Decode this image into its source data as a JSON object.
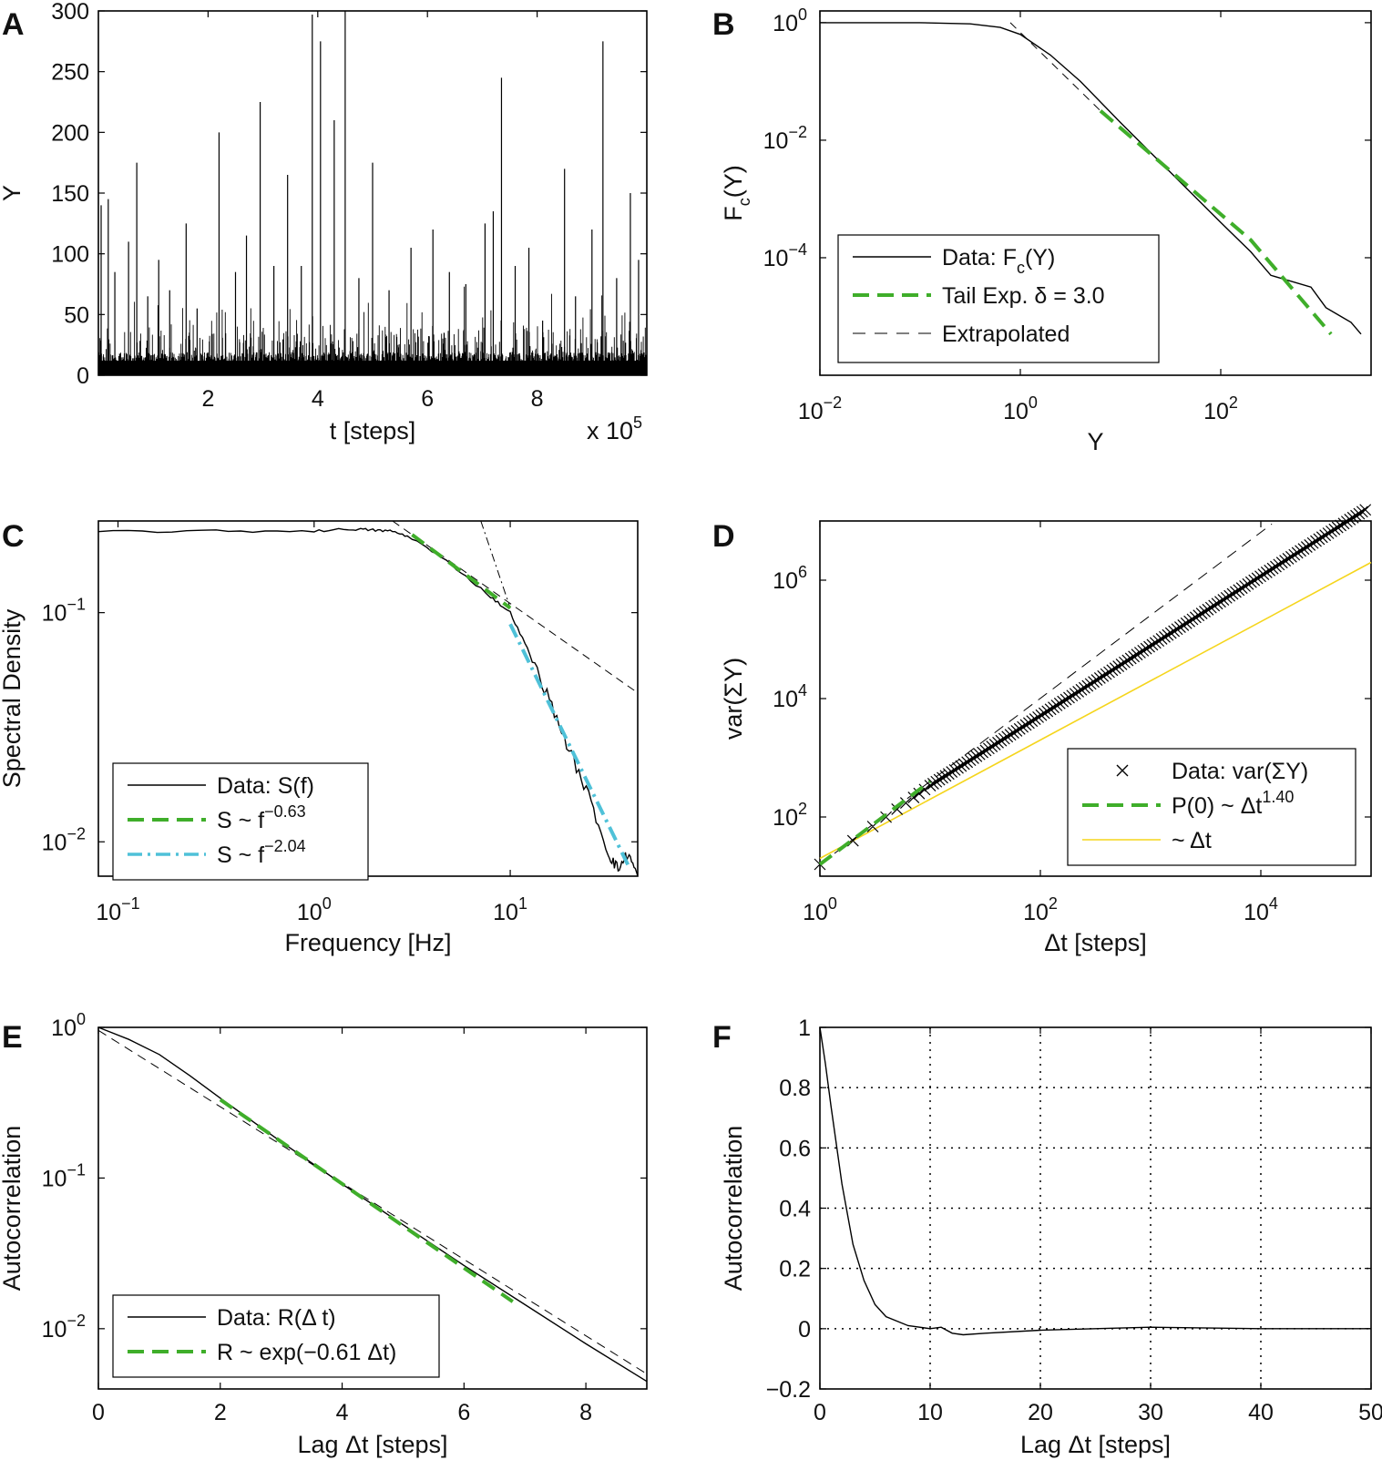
{
  "colors": {
    "data": "#000000",
    "green": "#3fae2a",
    "cyan": "#4fc1d8",
    "yellow": "#f5d51c",
    "grid": "#000000"
  },
  "chart_data": [
    {
      "panel": "A",
      "type": "line",
      "xlabel": "t [steps]",
      "x_multiplier": "x 10",
      "x_multiplier_exp": "5",
      "ylabel": "Y",
      "xlim": [
        0,
        10
      ],
      "ylim": [
        0,
        300
      ],
      "xticks": [
        {
          "v": 2,
          "label": "2"
        },
        {
          "v": 4,
          "label": "4"
        },
        {
          "v": 6,
          "label": "6"
        },
        {
          "v": 8,
          "label": "8"
        }
      ],
      "yticks": [
        {
          "v": 0,
          "label": "0"
        },
        {
          "v": 50,
          "label": "50"
        },
        {
          "v": 100,
          "label": "100"
        },
        {
          "v": 150,
          "label": "150"
        },
        {
          "v": 200,
          "label": "200"
        },
        {
          "v": 250,
          "label": "250"
        },
        {
          "v": 300,
          "label": "300"
        }
      ],
      "series": [
        {
          "name": "Y(t)",
          "spikes": [
            [
              0.05,
              140
            ],
            [
              0.18,
              145
            ],
            [
              0.3,
              85
            ],
            [
              0.55,
              110
            ],
            [
              0.7,
              175
            ],
            [
              0.9,
              65
            ],
            [
              1.1,
              95
            ],
            [
              1.3,
              70
            ],
            [
              1.6,
              125
            ],
            [
              1.8,
              55
            ],
            [
              2.2,
              200
            ],
            [
              2.5,
              85
            ],
            [
              2.7,
              115
            ],
            [
              2.95,
              225
            ],
            [
              3.2,
              90
            ],
            [
              3.45,
              165
            ],
            [
              3.7,
              90
            ],
            [
              3.9,
              297
            ],
            [
              4.05,
              275
            ],
            [
              4.3,
              210
            ],
            [
              4.5,
              300
            ],
            [
              4.75,
              80
            ],
            [
              5.0,
              175
            ],
            [
              5.3,
              70
            ],
            [
              5.7,
              105
            ],
            [
              6.1,
              120
            ],
            [
              6.4,
              85
            ],
            [
              6.7,
              75
            ],
            [
              7.05,
              125
            ],
            [
              7.2,
              135
            ],
            [
              7.35,
              245
            ],
            [
              7.6,
              90
            ],
            [
              7.85,
              105
            ],
            [
              8.1,
              45
            ],
            [
              8.5,
              170
            ],
            [
              8.7,
              65
            ],
            [
              9.0,
              120
            ],
            [
              9.2,
              275
            ],
            [
              9.45,
              80
            ],
            [
              9.7,
              150
            ],
            [
              9.85,
              95
            ]
          ]
        }
      ]
    },
    {
      "panel": "B",
      "type": "line",
      "scale": "loglog",
      "xlabel": "Y",
      "ylabel": "F",
      "ylabel_sub": "c",
      "ylabel_tail": "(Y)",
      "xlim_log10": [
        -2,
        3.5
      ],
      "ylim_log10": [
        -6,
        0.2
      ],
      "xticks": [
        {
          "v": -2,
          "base": "10",
          "exp": "−2"
        },
        {
          "v": 0,
          "base": "10",
          "exp": "0"
        },
        {
          "v": 2,
          "base": "10",
          "exp": "2"
        }
      ],
      "yticks": [
        {
          "v": 0,
          "base": "10",
          "exp": "0"
        },
        {
          "v": -2,
          "base": "10",
          "exp": "−2"
        },
        {
          "v": -4,
          "base": "10",
          "exp": "−4"
        }
      ],
      "series": [
        {
          "name": "Data",
          "points_log10": [
            [
              -2,
              0
            ],
            [
              -1,
              0
            ],
            [
              -0.5,
              -0.02
            ],
            [
              -0.2,
              -0.08
            ],
            [
              0,
              -0.2
            ],
            [
              0.3,
              -0.55
            ],
            [
              0.6,
              -1.0
            ],
            [
              1,
              -1.7
            ],
            [
              1.5,
              -2.55
            ],
            [
              2,
              -3.4
            ],
            [
              2.3,
              -3.9
            ],
            [
              2.4,
              -4.1
            ],
            [
              2.5,
              -4.3
            ],
            [
              2.9,
              -4.5
            ],
            [
              3.05,
              -4.85
            ],
            [
              3.2,
              -5.0
            ],
            [
              3.3,
              -5.1
            ],
            [
              3.4,
              -5.3
            ]
          ]
        },
        {
          "name": "Tail",
          "points_log10": [
            [
              0.8,
              -1.5
            ],
            [
              2.3,
              -3.7
            ],
            [
              3.1,
              -5.3
            ]
          ]
        },
        {
          "name": "Extrapolated",
          "points_log10": [
            [
              -0.1,
              0.0
            ],
            [
              0.8,
              -1.5
            ]
          ]
        }
      ],
      "legend": [
        {
          "text": "Data: F",
          "sub": "c",
          "tail": "(Y)",
          "style": "solid"
        },
        {
          "text": "Tail Exp. δ = 3.0",
          "style": "green-dash"
        },
        {
          "text": "Extrapolated",
          "style": "thin-dash"
        }
      ]
    },
    {
      "panel": "C",
      "type": "line",
      "scale": "loglog",
      "xlabel": "Frequency [Hz]",
      "ylabel": "Spectral Density",
      "xlim_log10": [
        -1.1,
        1.65
      ],
      "ylim_log10": [
        -2.15,
        -0.6
      ],
      "xticks": [
        {
          "v": -1,
          "base": "10",
          "exp": "−1"
        },
        {
          "v": 0,
          "base": "10",
          "exp": "0"
        },
        {
          "v": 1,
          "base": "10",
          "exp": "1"
        }
      ],
      "yticks": [
        {
          "v": -1,
          "base": "10",
          "exp": "−1"
        },
        {
          "v": -2,
          "base": "10",
          "exp": "−2"
        }
      ],
      "series": [
        {
          "name": "Data",
          "points_log10": [
            [
              -1.1,
              -0.645
            ],
            [
              -0.5,
              -0.645
            ],
            [
              0,
              -0.643
            ],
            [
              0.2,
              -0.635
            ],
            [
              0.3,
              -0.64
            ],
            [
              0.4,
              -0.645
            ],
            [
              0.5,
              -0.675
            ],
            [
              0.7,
              -0.79
            ],
            [
              0.9,
              -0.93
            ],
            [
              1.0,
              -1.0
            ],
            [
              1.1,
              -1.18
            ],
            [
              1.2,
              -1.38
            ],
            [
              1.3,
              -1.6
            ],
            [
              1.4,
              -1.8
            ],
            [
              1.5,
              -2.05
            ],
            [
              1.55,
              -2.12
            ],
            [
              1.6,
              -2.05
            ],
            [
              1.65,
              -2.15
            ]
          ]
        },
        {
          "name": "Fit1",
          "points_log10": [
            [
              0.5,
              -0.66
            ],
            [
              1.0,
              -0.98
            ]
          ]
        },
        {
          "name": "Fit2",
          "points_log10": [
            [
              1.0,
              -1.05
            ],
            [
              1.6,
              -2.1
            ]
          ]
        },
        {
          "name": "Ext1",
          "points_log10": [
            [
              0.4,
              -0.6
            ],
            [
              1.65,
              -1.35
            ]
          ]
        },
        {
          "name": "Ext2",
          "points_log10": [
            [
              0.85,
              -0.6
            ],
            [
              1.0,
              -0.98
            ]
          ]
        }
      ],
      "legend": [
        {
          "text": "Data: S(f)",
          "style": "solid"
        },
        {
          "text": "S ~ f",
          "sup": "−0.63",
          "style": "green-dash"
        },
        {
          "text": "S ~ f",
          "sup": "−2.04",
          "style": "cyan-dashdot"
        }
      ]
    },
    {
      "panel": "D",
      "type": "scatter",
      "scale": "loglog",
      "xlabel": "Δt [steps]",
      "ylabel": "var(ΣY)",
      "xlim_log10": [
        0,
        5
      ],
      "ylim_log10": [
        1,
        7
      ],
      "xticks": [
        {
          "v": 0,
          "base": "10",
          "exp": "0"
        },
        {
          "v": 2,
          "base": "10",
          "exp": "2"
        },
        {
          "v": 4,
          "base": "10",
          "exp": "4"
        }
      ],
      "yticks": [
        {
          "v": 2,
          "base": "10",
          "exp": "2"
        },
        {
          "v": 4,
          "base": "10",
          "exp": "4"
        },
        {
          "v": 6,
          "base": "10",
          "exp": "6"
        }
      ],
      "series": [
        {
          "name": "Data",
          "fit": {
            "slope": 1.18,
            "intercept": 1.2,
            "x0": 0,
            "x1": 5
          }
        },
        {
          "name": "P0",
          "points_log10": [
            [
              0,
              1.2
            ],
            [
              1.0,
              2.6
            ]
          ]
        },
        {
          "name": "Ext",
          "points_log10": [
            [
              0,
              1.2
            ],
            [
              4.1,
              6.95
            ]
          ]
        },
        {
          "name": "Linear",
          "points_log10": [
            [
              0,
              1.3
            ],
            [
              5,
              6.3
            ]
          ]
        }
      ],
      "legend": [
        {
          "text": "Data: var(ΣY)",
          "style": "cross"
        },
        {
          "text": "P(0) ~ Δt",
          "sup": "1.40",
          "style": "green-dash"
        },
        {
          "text": "~ Δt",
          "style": "yellow"
        }
      ]
    },
    {
      "panel": "E",
      "type": "line",
      "scale": "semilogy",
      "xlabel": "Lag Δt [steps]",
      "ylabel": "Autocorrelation",
      "xlim": [
        0,
        9
      ],
      "ylim_log10": [
        -2.4,
        0
      ],
      "xticks": [
        {
          "v": 0,
          "label": "0"
        },
        {
          "v": 2,
          "label": "2"
        },
        {
          "v": 4,
          "label": "4"
        },
        {
          "v": 6,
          "label": "6"
        },
        {
          "v": 8,
          "label": "8"
        }
      ],
      "yticks": [
        {
          "v": 0,
          "base": "10",
          "exp": "0"
        },
        {
          "v": -1,
          "base": "10",
          "exp": "−1"
        },
        {
          "v": -2,
          "base": "10",
          "exp": "−2"
        }
      ],
      "series": [
        {
          "name": "Data",
          "points_log10": [
            [
              0,
              0
            ],
            [
              0.5,
              -0.08
            ],
            [
              1,
              -0.18
            ],
            [
              1.5,
              -0.32
            ],
            [
              2,
              -0.47
            ],
            [
              3,
              -0.76
            ],
            [
              4,
              -1.04
            ],
            [
              5,
              -1.31
            ],
            [
              6,
              -1.58
            ],
            [
              7,
              -1.84
            ],
            [
              8,
              -2.1
            ],
            [
              9,
              -2.35
            ]
          ]
        },
        {
          "name": "Fit",
          "points_log10": [
            [
              2,
              -0.48
            ],
            [
              6.8,
              -1.82
            ]
          ]
        },
        {
          "name": "Ext",
          "points_log10": [
            [
              0,
              -0.02
            ],
            [
              9,
              -2.3
            ]
          ]
        }
      ],
      "legend": [
        {
          "text": "Data: R(Δ t)",
          "style": "solid"
        },
        {
          "text": "R ~ exp(−0.61 Δt)",
          "style": "green-dash"
        }
      ]
    },
    {
      "panel": "F",
      "type": "line",
      "xlabel": "Lag Δt [steps]",
      "ylabel": "Autocorrelation",
      "xlim": [
        0,
        50
      ],
      "ylim": [
        -0.2,
        1
      ],
      "xticks": [
        {
          "v": 0,
          "label": "0"
        },
        {
          "v": 10,
          "label": "10"
        },
        {
          "v": 20,
          "label": "20"
        },
        {
          "v": 30,
          "label": "30"
        },
        {
          "v": 40,
          "label": "40"
        },
        {
          "v": 50,
          "label": "50"
        }
      ],
      "yticks": [
        {
          "v": -0.2,
          "label": "−0.2"
        },
        {
          "v": 0,
          "label": "0"
        },
        {
          "v": 0.2,
          "label": "0.2"
        },
        {
          "v": 0.4,
          "label": "0.4"
        },
        {
          "v": 0.6,
          "label": "0.6"
        },
        {
          "v": 0.8,
          "label": "0.8"
        },
        {
          "v": 1,
          "label": "1"
        }
      ],
      "grid": true,
      "series": [
        {
          "name": "Data",
          "points": [
            [
              0,
              1.0
            ],
            [
              0.5,
              0.88
            ],
            [
              1,
              0.74
            ],
            [
              2,
              0.48
            ],
            [
              3,
              0.28
            ],
            [
              4,
              0.16
            ],
            [
              5,
              0.08
            ],
            [
              6,
              0.04
            ],
            [
              8,
              0.01
            ],
            [
              10,
              0.0
            ],
            [
              11,
              0.005
            ],
            [
              12,
              -0.015
            ],
            [
              13,
              -0.02
            ],
            [
              15,
              -0.015
            ],
            [
              20,
              -0.005
            ],
            [
              25,
              0.0
            ],
            [
              30,
              0.005
            ],
            [
              40,
              0.0
            ],
            [
              50,
              0.0
            ]
          ]
        }
      ]
    }
  ]
}
